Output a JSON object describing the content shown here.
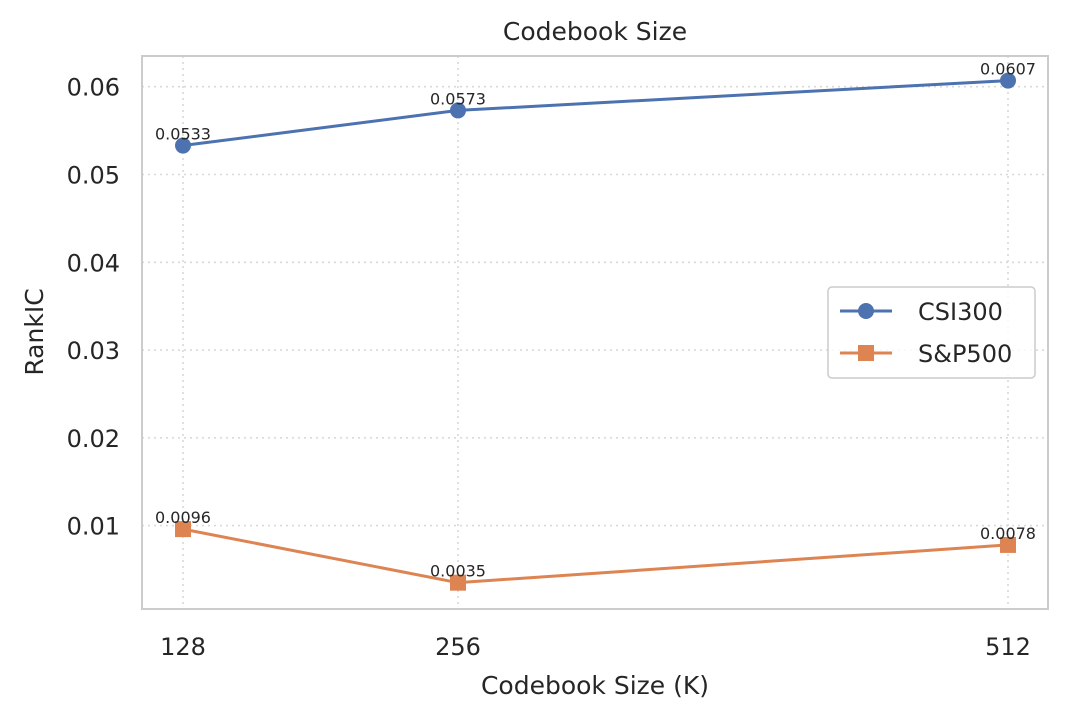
{
  "chart_data": {
    "type": "line",
    "title": "Codebook Size",
    "xlabel": "Codebook Size (K)",
    "ylabel": "RankIC",
    "categories": [
      "128",
      "256",
      "512"
    ],
    "x": [
      128,
      256,
      512
    ],
    "ylim": [
      0.0005,
      0.0635
    ],
    "yticks": [
      0.01,
      0.02,
      0.03,
      0.04,
      0.05,
      0.06
    ],
    "ytick_labels": [
      "0.01",
      "0.02",
      "0.03",
      "0.04",
      "0.05",
      "0.06"
    ],
    "grid": true,
    "legend_position": "center-right",
    "series": [
      {
        "name": "CSI300",
        "values": [
          0.0533,
          0.0573,
          0.0607
        ],
        "labels": [
          "0.0533",
          "0.0573",
          "0.0607"
        ],
        "color": "#4c72b0",
        "marker": "circle"
      },
      {
        "name": "S&P500",
        "values": [
          0.0096,
          0.0035,
          0.0078
        ],
        "labels": [
          "0.0096",
          "0.0035",
          "0.0078"
        ],
        "color": "#dd8452",
        "marker": "square"
      }
    ]
  },
  "colors": {
    "grid": "#d9d9d9",
    "spine": "#cccccc",
    "background": "#ffffff"
  }
}
